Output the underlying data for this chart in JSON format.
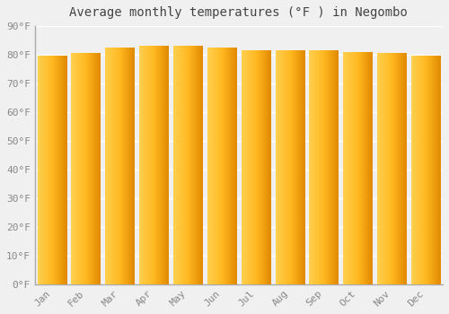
{
  "title": "Average monthly temperatures (°F ) in Negombo",
  "months": [
    "Jan",
    "Feb",
    "Mar",
    "Apr",
    "May",
    "Jun",
    "Jul",
    "Aug",
    "Sep",
    "Oct",
    "Nov",
    "Dec"
  ],
  "values": [
    79.5,
    80.5,
    82.5,
    83.0,
    83.0,
    82.5,
    81.5,
    81.5,
    81.5,
    81.0,
    80.5,
    79.5
  ],
  "bar_color_left": "#FFD050",
  "bar_color_center": "#FFB820",
  "bar_color_right": "#E08800",
  "ylim": [
    0,
    90
  ],
  "yticks": [
    0,
    10,
    20,
    30,
    40,
    50,
    60,
    70,
    80,
    90
  ],
  "ytick_labels": [
    "0°F",
    "10°F",
    "20°F",
    "30°F",
    "40°F",
    "50°F",
    "60°F",
    "70°F",
    "80°F",
    "90°F"
  ],
  "background_color": "#f0f0f0",
  "grid_color": "#ffffff",
  "title_fontsize": 10,
  "tick_fontsize": 8,
  "xlabel_rotation": 45,
  "bar_width": 0.85
}
